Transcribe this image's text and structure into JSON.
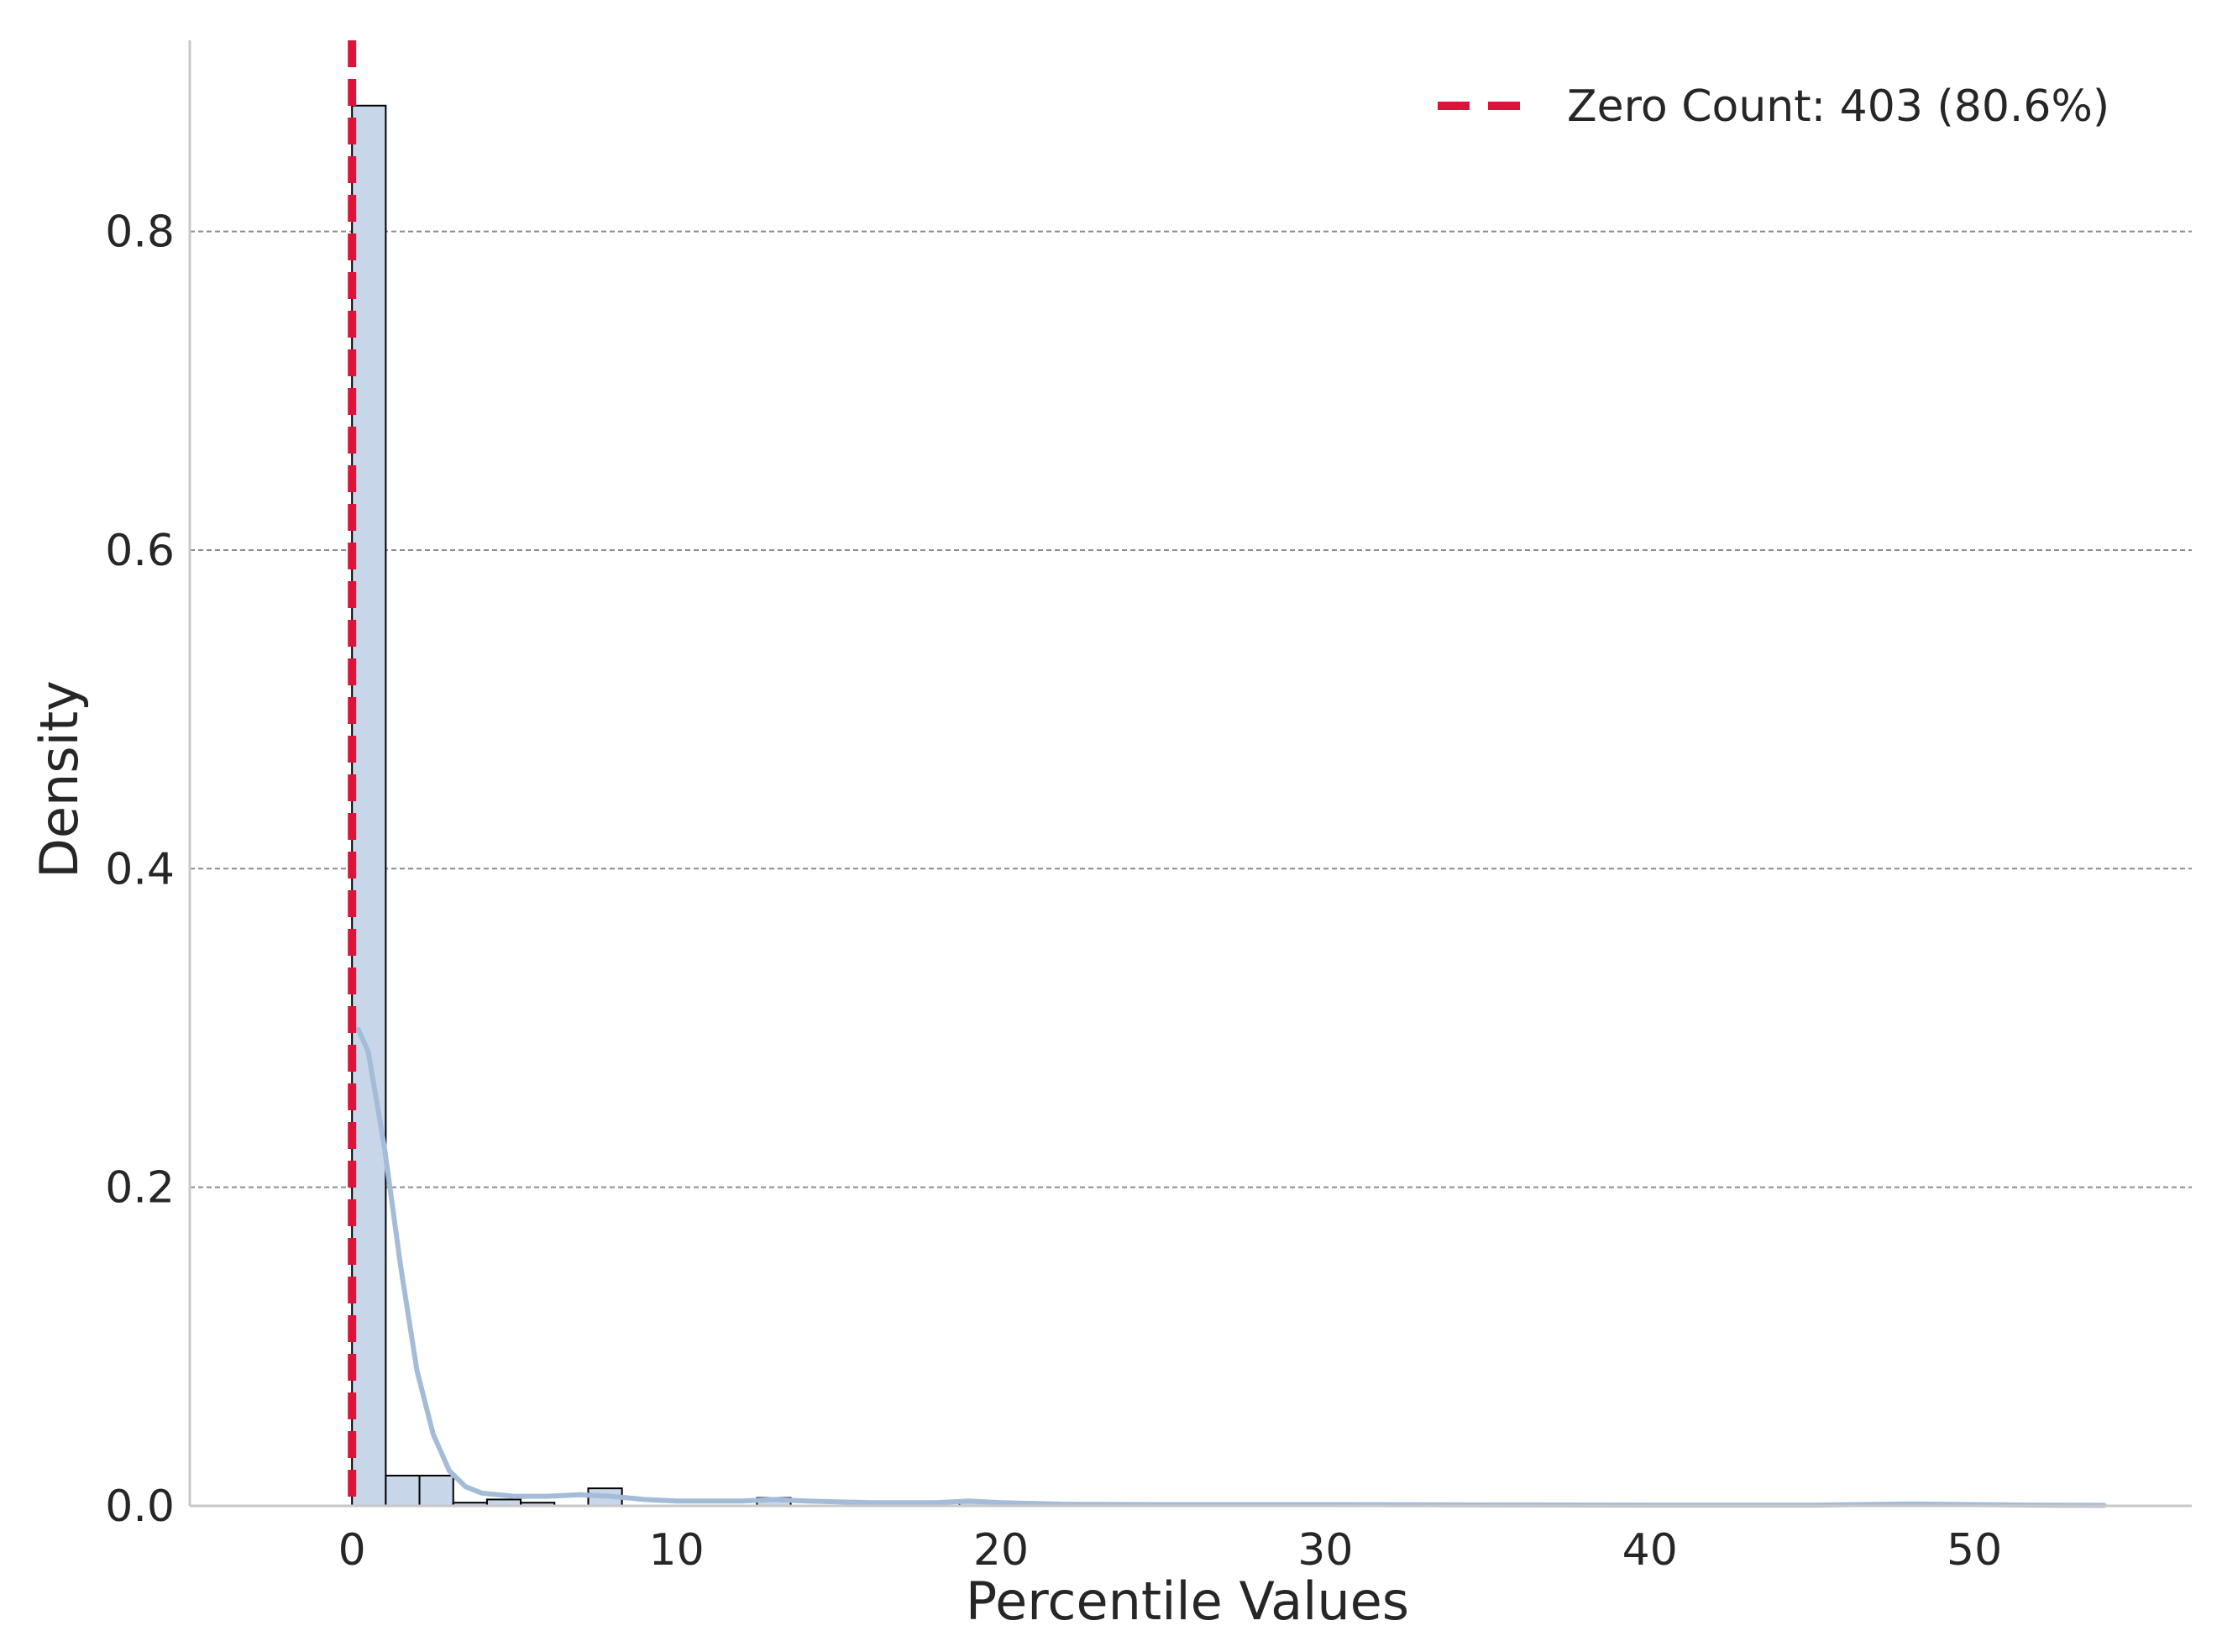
{
  "chart_data": {
    "type": "histogram",
    "xlabel": "Percentile Values",
    "ylabel": "Density",
    "xlim": [
      -5,
      56.7
    ],
    "ylim": [
      0,
      0.92
    ],
    "xticks": [
      0,
      10,
      20,
      30,
      40,
      50
    ],
    "yticks": [
      0.0,
      0.2,
      0.4,
      0.6,
      0.8
    ],
    "xtick_labels": [
      "0",
      "10",
      "20",
      "30",
      "40",
      "50"
    ],
    "ytick_labels": [
      "0.0",
      "0.2",
      "0.4",
      "0.6",
      "0.8"
    ],
    "grid": "horizontal dashed",
    "bin_width": 1.04,
    "bins": [
      {
        "x0": 0.0,
        "density": 0.879
      },
      {
        "x0": 1.04,
        "density": 0.019
      },
      {
        "x0": 2.08,
        "density": 0.019
      },
      {
        "x0": 3.12,
        "density": 0.002
      },
      {
        "x0": 4.16,
        "density": 0.004
      },
      {
        "x0": 5.2,
        "density": 0.002
      },
      {
        "x0": 7.28,
        "density": 0.011
      },
      {
        "x0": 12.48,
        "density": 0.005
      },
      {
        "x0": 18.72,
        "density": 0.003
      },
      {
        "x0": 23.92,
        "density": 0.001
      },
      {
        "x0": 29.12,
        "density": 0.001
      },
      {
        "x0": 47.84,
        "density": 0.001
      },
      {
        "x0": 50.96,
        "density": 0.001
      }
    ],
    "kde": {
      "x": [
        0.2,
        0.5,
        1.0,
        1.5,
        2.0,
        2.5,
        3.0,
        3.5,
        4.0,
        5.0,
        6.0,
        7.0,
        8.0,
        9.0,
        10.0,
        12.0,
        13.0,
        14.0,
        16.0,
        18.0,
        19.0,
        20.0,
        22.0,
        25.0,
        30.0,
        35.0,
        40.0,
        45.0,
        48.0,
        50.0,
        52.0,
        54.0
      ],
      "y": [
        0.299,
        0.285,
        0.225,
        0.15,
        0.085,
        0.045,
        0.022,
        0.012,
        0.008,
        0.006,
        0.006,
        0.007,
        0.006,
        0.004,
        0.003,
        0.003,
        0.004,
        0.003,
        0.002,
        0.002,
        0.003,
        0.002,
        0.001,
        0.0008,
        0.0008,
        0.0006,
        0.0005,
        0.0005,
        0.0012,
        0.0008,
        0.0005,
        0.0003
      ]
    },
    "zero_line": {
      "x": 0,
      "label": "Zero Count: 403 (80.6%)"
    },
    "legend": {
      "placement": "top-right",
      "entries": [
        "Zero Count: 403 (80.6%)"
      ]
    },
    "colors": {
      "bar_fill": "#c8d6e9",
      "bar_edge": "#000000",
      "kde": "#a4bcd8",
      "zero_line": "#dc143c",
      "grid": "#8c8c8c",
      "axis": "#c8c8c8",
      "text": "#262626"
    }
  }
}
